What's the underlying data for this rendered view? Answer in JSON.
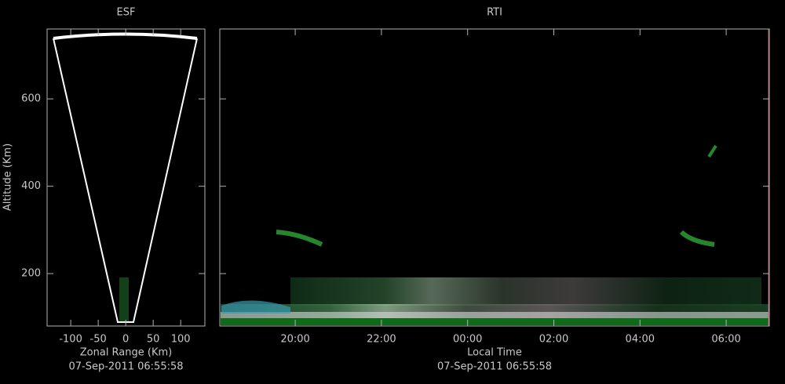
{
  "chart_data": [
    {
      "type": "fan",
      "title": "ESF",
      "y_label": "Altitude (Km)",
      "x_label": "Zonal Range (Km)",
      "subtitle": "07-Sep-2011 06:55:58",
      "xlim": [
        -143,
        144
      ],
      "xticks": [
        -100,
        -50,
        0,
        50,
        100
      ],
      "ylim": [
        80,
        760
      ],
      "yticks": [
        200,
        400,
        600
      ]
    },
    {
      "type": "rti",
      "title": "RTI",
      "x_label": "Local Time",
      "subtitle": "07-Sep-2011 06:55:58",
      "xlim": [
        18.25,
        31
      ],
      "ylim": [
        80,
        760
      ],
      "xticks": [
        {
          "value": 20,
          "label": "20:00"
        },
        {
          "value": 22,
          "label": "22:00"
        },
        {
          "value": 24,
          "label": "00:00"
        },
        {
          "value": 26,
          "label": "02:00"
        },
        {
          "value": 28,
          "label": "04:00"
        },
        {
          "value": 30,
          "label": "06:00"
        }
      ]
    }
  ]
}
